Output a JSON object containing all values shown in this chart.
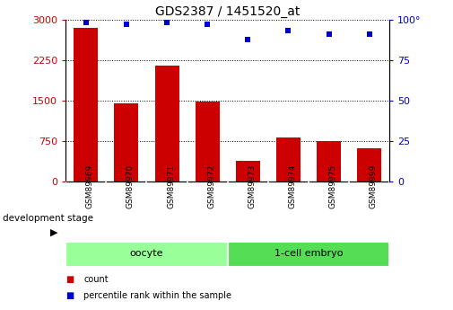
{
  "title": "GDS2387 / 1451520_at",
  "samples": [
    "GSM89969",
    "GSM89970",
    "GSM89971",
    "GSM89972",
    "GSM89973",
    "GSM89974",
    "GSM89975",
    "GSM89999"
  ],
  "counts": [
    2850,
    1450,
    2150,
    1480,
    380,
    820,
    750,
    620
  ],
  "percentiles": [
    98.5,
    97.5,
    98.8,
    97.5,
    88.0,
    93.5,
    91.5,
    91.5
  ],
  "bar_color": "#cc0000",
  "dot_color": "#0000cc",
  "ylim_left": [
    0,
    3000
  ],
  "ylim_right": [
    0,
    100
  ],
  "yticks_left": [
    0,
    750,
    1500,
    2250,
    3000
  ],
  "ytick_labels_left": [
    "0",
    "750",
    "1500",
    "2250",
    "3000"
  ],
  "yticks_right": [
    0,
    25,
    50,
    75,
    100
  ],
  "ytick_labels_right": [
    "0",
    "25",
    "50",
    "75",
    "100°"
  ],
  "groups": [
    {
      "label": "oocyte",
      "start": 0,
      "end": 3,
      "color": "#99ff99"
    },
    {
      "label": "1-cell embryo",
      "start": 4,
      "end": 7,
      "color": "#55dd55"
    }
  ],
  "dev_stage_label": "development stage",
  "legend": [
    {
      "label": "count",
      "color": "#cc0000"
    },
    {
      "label": "percentile rank within the sample",
      "color": "#0000cc"
    }
  ],
  "background_color": "#ffffff",
  "plot_bg_color": "#ffffff",
  "tick_area_color": "#c8c8c8",
  "grid_linestyle": "dotted",
  "bar_width": 0.6,
  "title_fontsize": 10,
  "axis_fontsize": 8,
  "label_fontsize": 7.5
}
